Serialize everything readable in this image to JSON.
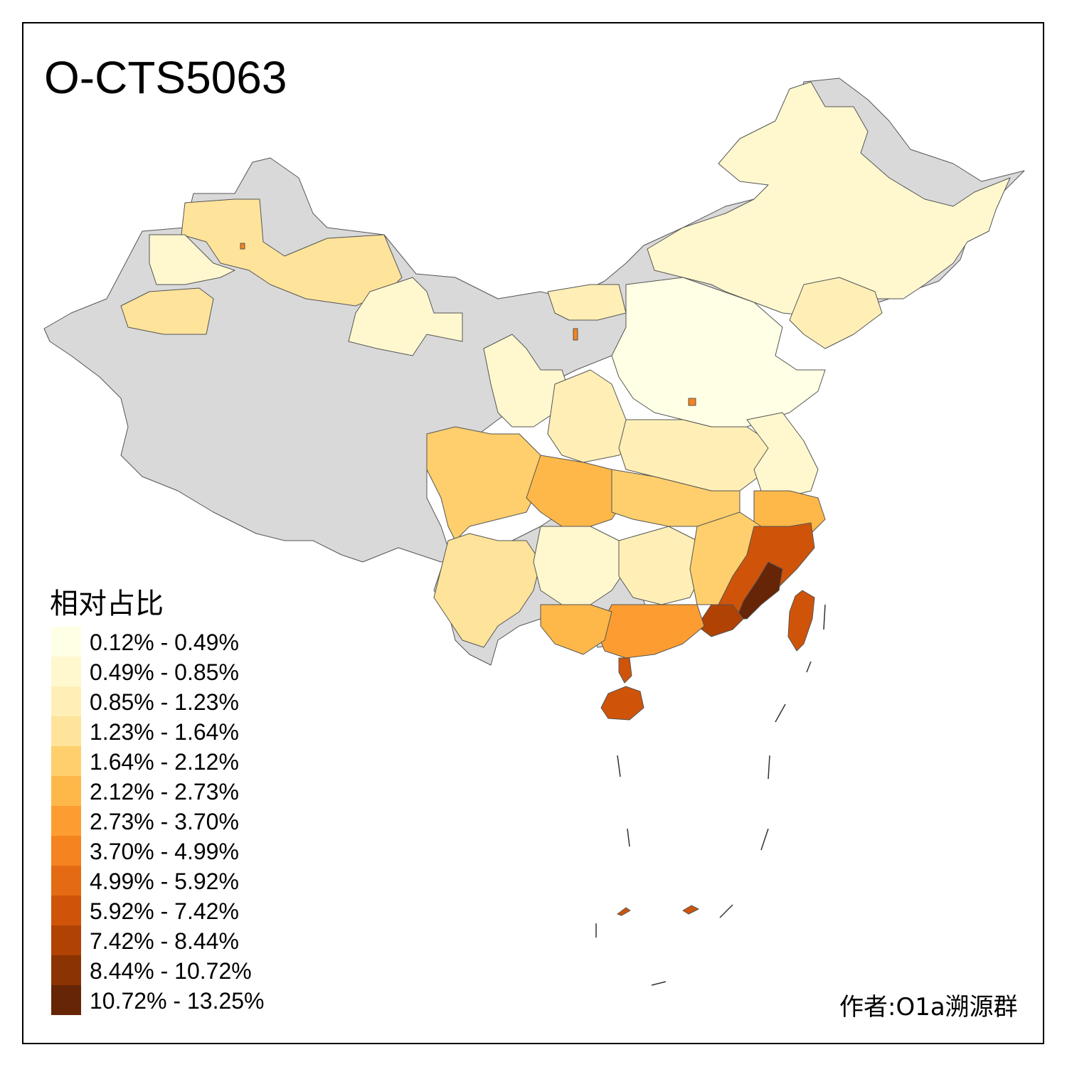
{
  "title": "O-CTS5063",
  "legend": {
    "title": "相对占比",
    "items": [
      {
        "label": "0.12% - 0.49%",
        "color": "#ffffe5"
      },
      {
        "label": "0.49% - 0.85%",
        "color": "#fff8cf"
      },
      {
        "label": "0.85% - 1.23%",
        "color": "#ffefb6"
      },
      {
        "label": "1.23% - 1.64%",
        "color": "#fee39a"
      },
      {
        "label": "1.64% - 2.12%",
        "color": "#fecf6c"
      },
      {
        "label": "2.12% - 2.73%",
        "color": "#feb849"
      },
      {
        "label": "2.73% - 3.70%",
        "color": "#fd9d31"
      },
      {
        "label": "3.70% - 4.99%",
        "color": "#f5831f"
      },
      {
        "label": "4.99% - 5.92%",
        "color": "#e46a13"
      },
      {
        "label": "5.92% - 7.42%",
        "color": "#cf5409"
      },
      {
        "label": "7.42% - 8.44%",
        "color": "#b04203"
      },
      {
        "label": "8.44% - 10.72%",
        "color": "#8c3304"
      },
      {
        "label": "10.72% - 13.25%",
        "color": "#662506"
      }
    ]
  },
  "nodata_color": "#d9d9d9",
  "author": "作者:O1a溯源群"
}
